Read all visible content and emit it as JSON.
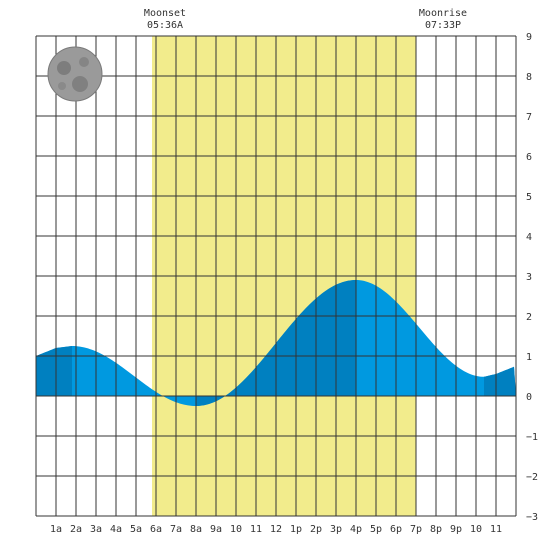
{
  "chart_data": {
    "type": "area",
    "title": "",
    "xlabel": "",
    "ylabel": "",
    "x_ticks": [
      "1a",
      "2a",
      "3a",
      "4a",
      "5a",
      "6a",
      "7a",
      "8a",
      "9a",
      "10",
      "11",
      "12",
      "1p",
      "2p",
      "3p",
      "4p",
      "5p",
      "6p",
      "7p",
      "8p",
      "9p",
      "10",
      "11"
    ],
    "xlim": [
      0,
      24
    ],
    "ylim": [
      -3,
      9
    ],
    "y_ticks": [
      9,
      8,
      7,
      6,
      5,
      4,
      3,
      2,
      1,
      0,
      -1,
      -2,
      -3
    ],
    "grid": true,
    "daylight": {
      "start_hour": 5.8,
      "end_hour": 19.0
    },
    "moon": {
      "phase": "full",
      "moonset": {
        "label": "Moonset",
        "time": "05:36A"
      },
      "moonrise": {
        "label": "Moonrise",
        "time": "07:33P"
      }
    },
    "colors": {
      "daylight": "#f2ec8c",
      "tide": "#0099e0",
      "tide_dark": "#0080c0",
      "grid": "#333333",
      "text": "#333333"
    },
    "extremes": [
      {
        "hour": 1.8,
        "type": "high",
        "height": 1.25
      },
      {
        "hour": 8.0,
        "type": "low",
        "height": -0.25
      },
      {
        "hour": 16.0,
        "type": "high",
        "height": 2.9
      },
      {
        "hour": 22.4,
        "type": "low",
        "height": 0.48
      }
    ],
    "series": [
      {
        "x": [
          0,
          1,
          1.8,
          3,
          4,
          5,
          6,
          7,
          8,
          9,
          10,
          11,
          12,
          13,
          14,
          15,
          16,
          17,
          18,
          19,
          20,
          21,
          22,
          22.4,
          23,
          24
        ],
        "values": [
          1.0,
          1.2,
          1.25,
          1.1,
          0.85,
          0.5,
          0.1,
          -0.15,
          -0.25,
          -0.1,
          0.3,
          0.9,
          1.5,
          2.0,
          2.5,
          2.8,
          2.9,
          2.75,
          2.2,
          1.5,
          0.9,
          0.6,
          0.5,
          0.48,
          0.55,
          0.75
        ]
      }
    ]
  }
}
